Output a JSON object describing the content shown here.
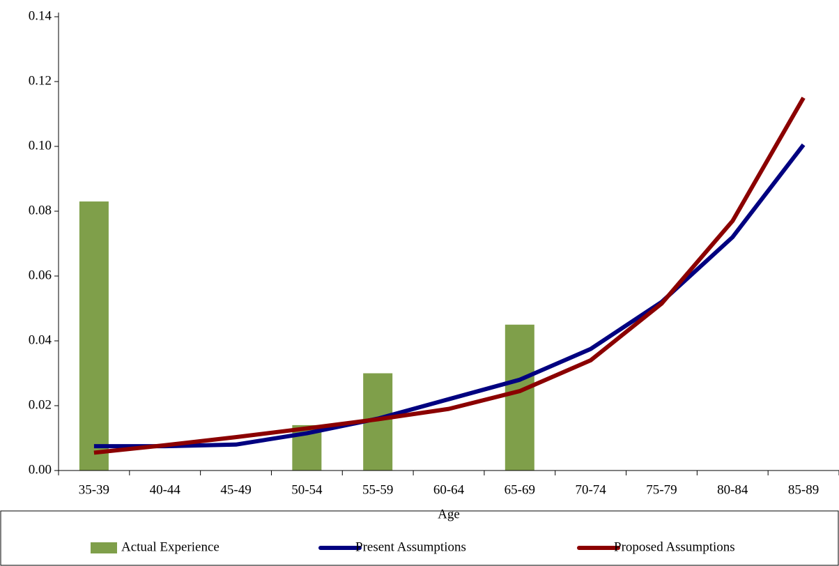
{
  "chart_data": {
    "type": "combo",
    "x_label": "Age",
    "categories": [
      "35-39",
      "40-44",
      "45-49",
      "50-54",
      "55-59",
      "60-64",
      "65-69",
      "70-74",
      "75-79",
      "80-84",
      "85-89"
    ],
    "series": [
      {
        "name": "Actual Experience",
        "type": "bar",
        "color": "#7f9f4a",
        "values": [
          0.083,
          null,
          null,
          0.014,
          0.03,
          null,
          0.045,
          null,
          null,
          null,
          null
        ]
      },
      {
        "name": "Present Assumptions",
        "type": "line",
        "color": "#000080",
        "values": [
          0.0075,
          0.0075,
          0.008,
          0.0115,
          0.016,
          0.022,
          0.028,
          0.0375,
          0.052,
          0.072,
          0.1005
        ]
      },
      {
        "name": "Proposed Assumptions",
        "type": "line",
        "color": "#8b0000",
        "values": [
          0.0055,
          0.0078,
          0.0103,
          0.013,
          0.0158,
          0.019,
          0.0245,
          0.034,
          0.0515,
          0.077,
          0.115
        ]
      }
    ],
    "ylim": [
      0,
      0.14
    ],
    "yticks": [
      {
        "value": 0,
        "label": "0.00"
      },
      0.02,
      0.04,
      0.06,
      0.08,
      {
        "value": 0.1,
        "label": "0.10"
      },
      0.12,
      0.14
    ],
    "legend": "bottom"
  }
}
